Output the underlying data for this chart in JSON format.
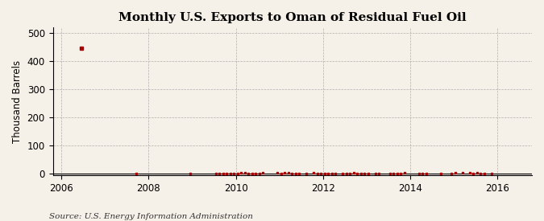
{
  "title": "Monthly U.S. Exports to Oman of Residual Fuel Oil",
  "ylabel": "Thousand Barrels",
  "source_text": "Source: U.S. Energy Information Administration",
  "xlim": [
    2005.8,
    2016.8
  ],
  "ylim": [
    -5,
    520
  ],
  "yticks": [
    0,
    100,
    200,
    300,
    400,
    500
  ],
  "xticks": [
    2006,
    2008,
    2010,
    2012,
    2014,
    2016
  ],
  "background_color": "#f5f0e8",
  "grid_color": "#aaaaaa",
  "marker_color": "#aa0000",
  "title_fontsize": 11,
  "label_fontsize": 8.5,
  "source_fontsize": 7.5,
  "spike_x": 2006.5,
  "spike_y": 447,
  "near_zero_value": 1
}
